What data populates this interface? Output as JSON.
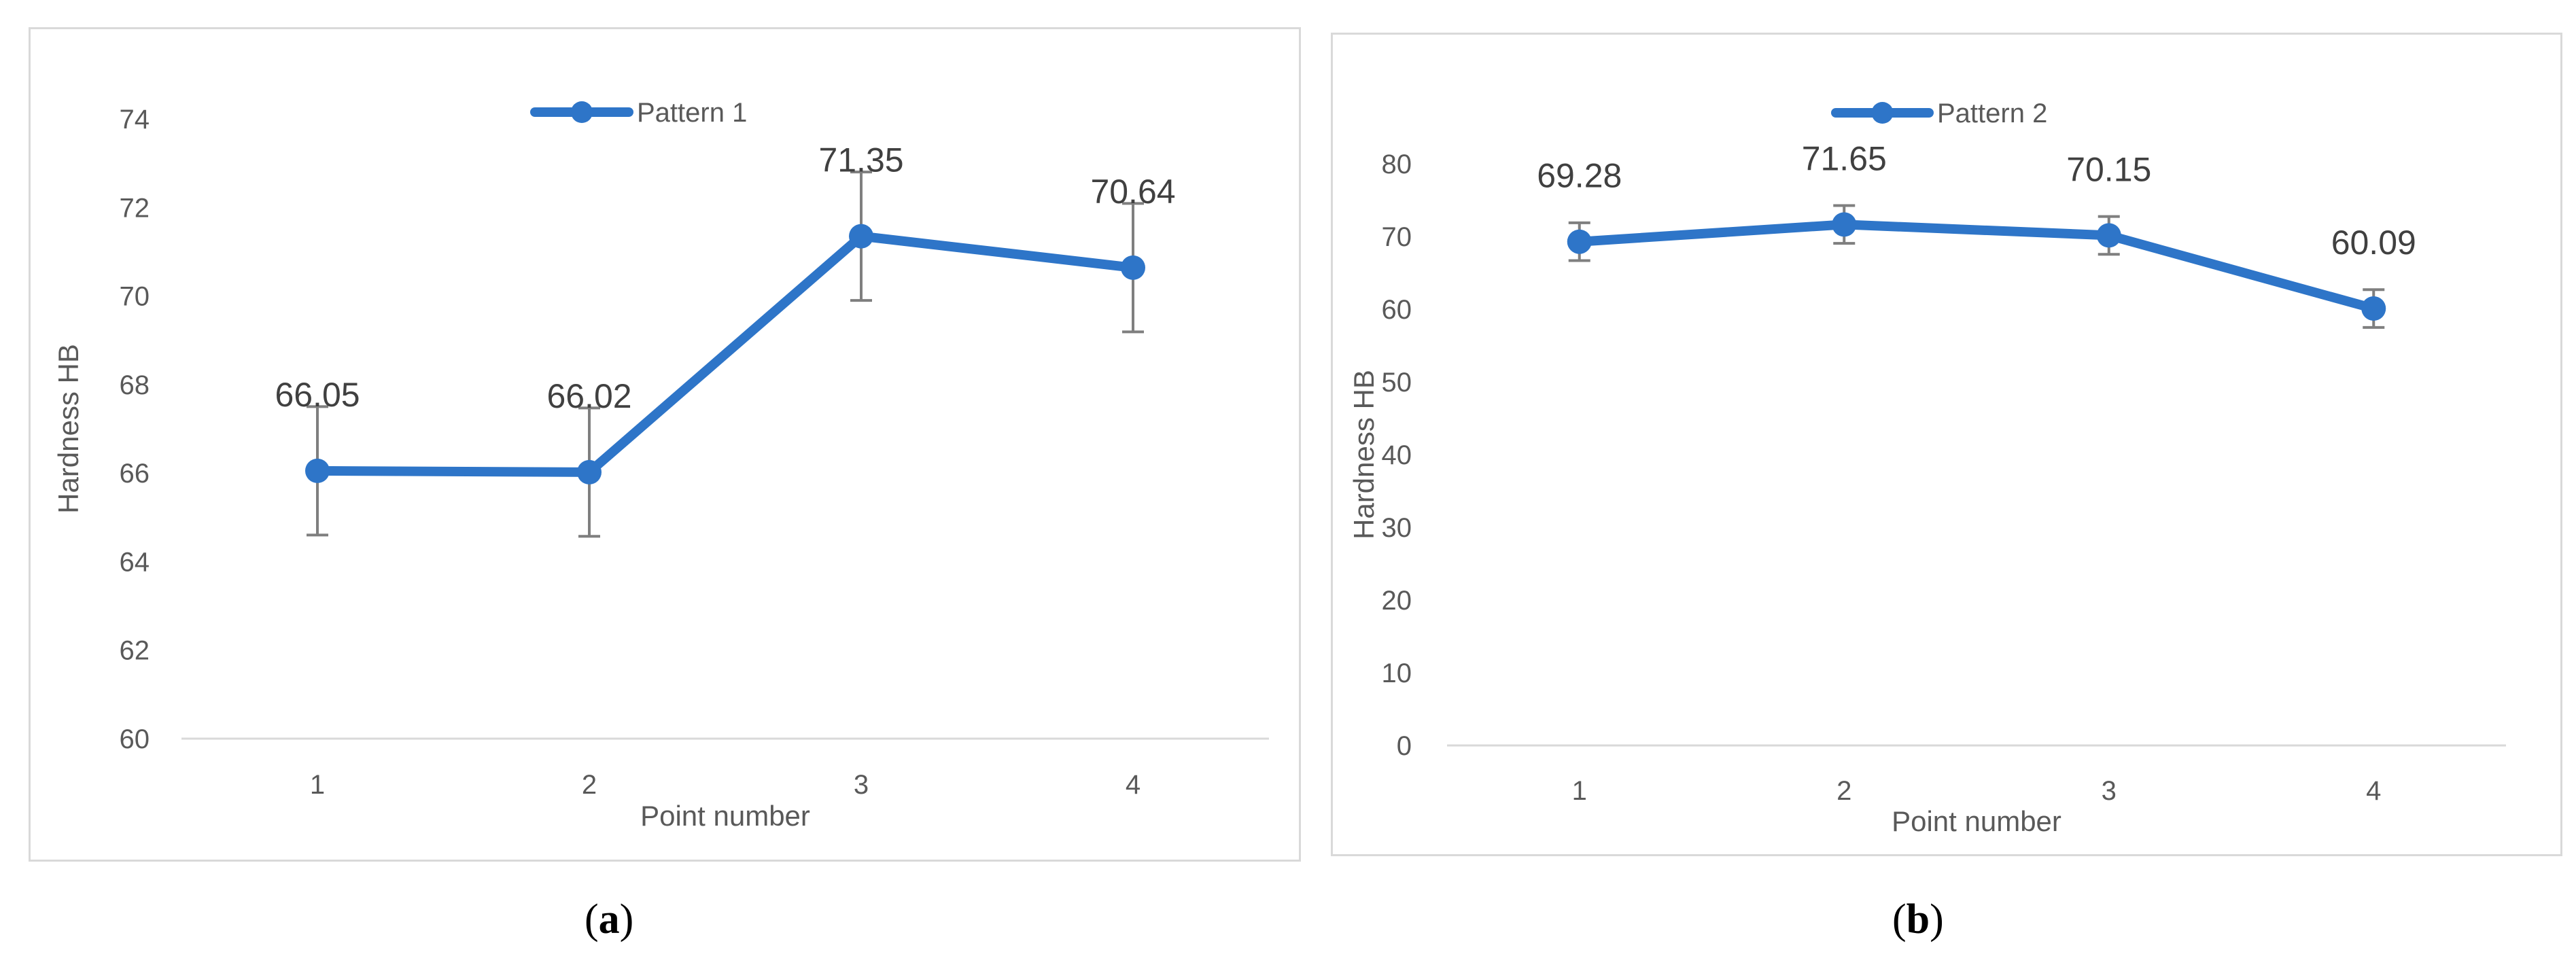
{
  "chart_data": [
    {
      "type": "line",
      "panel_label": "a",
      "categories": [
        "1",
        "2",
        "3",
        "4"
      ],
      "series": [
        {
          "name": "Pattern 1",
          "values": [
            66.05,
            66.02,
            71.35,
            70.64
          ],
          "error": [
            1.45,
            1.45,
            1.45,
            1.45
          ]
        }
      ],
      "data_labels": [
        "66.05",
        "66.02",
        "71.35",
        "70.64"
      ],
      "xlabel": "Point number",
      "ylabel": "Hardness HB",
      "ylim": [
        60,
        74
      ],
      "yticks": [
        "60",
        "62",
        "64",
        "66",
        "68",
        "70",
        "72",
        "74"
      ],
      "grid": false,
      "legend_position": "top"
    },
    {
      "type": "line",
      "panel_label": "b",
      "categories": [
        "1",
        "2",
        "3",
        "4"
      ],
      "series": [
        {
          "name": "Pattern 2",
          "values": [
            69.28,
            71.65,
            70.15,
            60.09
          ],
          "error": [
            2.6,
            2.6,
            2.6,
            2.6
          ]
        }
      ],
      "data_labels": [
        "69.28",
        "71.65",
        "70.15",
        "60.09"
      ],
      "xlabel": "Point number",
      "ylabel": "Hardness HB",
      "ylim": [
        0,
        80
      ],
      "yticks": [
        "0",
        "10",
        "20",
        "30",
        "40",
        "50",
        "60",
        "70",
        "80"
      ],
      "grid": false,
      "legend_position": "top"
    }
  ],
  "captions": {
    "a": {
      "open": "(",
      "letter": "a",
      "close": ")"
    },
    "b": {
      "open": "(",
      "letter": "b",
      "close": ")"
    }
  },
  "colors": {
    "series": "#2e75c8",
    "errorbar": "#7f7f7f",
    "axis": "#d9d9d9",
    "text": "#595959"
  }
}
